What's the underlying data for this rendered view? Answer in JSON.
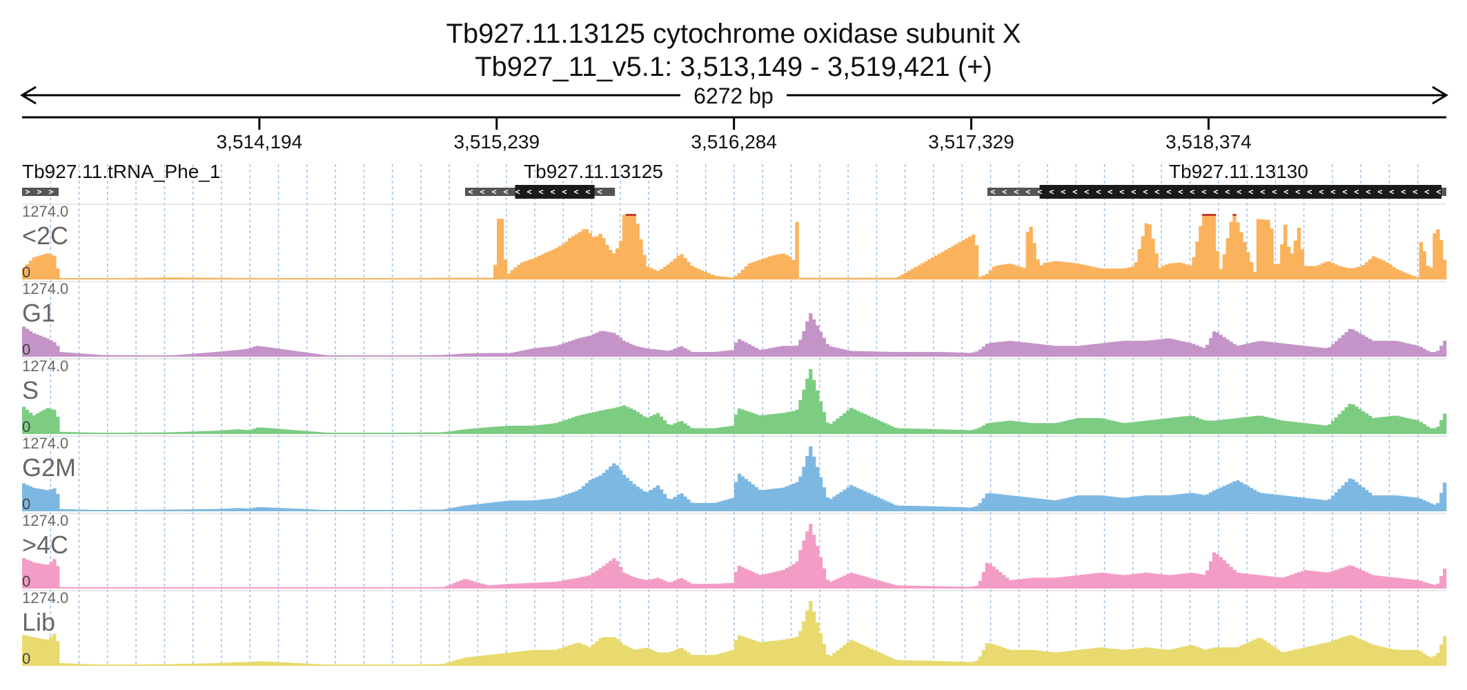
{
  "title": {
    "line1": "Tb927.11.13125  cytochrome oxidase subunit X",
    "line2": "Tb927_11_v5.1: 3,513,149 - 3,519,421 (+)",
    "span": "6272 bp"
  },
  "colors": {
    "axis": "#000000",
    "grid": "#9ec1e4",
    "gene_body": "#1a1a1a",
    "gene_utr": "#555555",
    "clip": "#c0392b"
  },
  "chart_data": {
    "type": "area",
    "xlim": [
      3513149,
      3519421
    ],
    "ticks": [
      {
        "pos": 3514194,
        "label": "3,514,194"
      },
      {
        "pos": 3515239,
        "label": "3,515,239"
      },
      {
        "pos": 3516284,
        "label": "3,516,284"
      },
      {
        "pos": 3517329,
        "label": "3,517,329"
      },
      {
        "pos": 3518374,
        "label": "3,518,374"
      }
    ],
    "genes": [
      {
        "name": "Tb927.11.tRNA_Phe_1",
        "strand": "+",
        "utr": [
          3513149,
          3513310
        ],
        "cds": null
      },
      {
        "name": "Tb927.11.13125",
        "strand": "-",
        "utr": [
          3515100,
          3515760
        ],
        "cds": [
          3515320,
          3515670
        ]
      },
      {
        "name": "Tb927.11.13130",
        "strand": "-",
        "utr": [
          3517400,
          3519421
        ],
        "cds": [
          3517630,
          3519400
        ]
      }
    ],
    "ylim": [
      0,
      1274.0
    ],
    "y_max_label": "1274.0",
    "y_zero_label": "0",
    "tracks": [
      {
        "name": "<2C",
        "color": "#fbb25c",
        "x": [
          3513149,
          3513200,
          3513260,
          3513300,
          3513310,
          3513320,
          3513500,
          3513800,
          3514200,
          3514600,
          3515050,
          3515150,
          3515230,
          3515240,
          3515270,
          3515280,
          3515300,
          3515350,
          3515400,
          3515450,
          3515500,
          3515540,
          3515560,
          3515600,
          3515630,
          3515650,
          3515670,
          3515700,
          3515720,
          3515750,
          3515760,
          3515790,
          3515800,
          3515850,
          3515900,
          3515950,
          3516000,
          3516050,
          3516100,
          3516150,
          3516200,
          3516280,
          3516300,
          3516350,
          3516450,
          3516500,
          3516530,
          3516550,
          3516560,
          3516570,
          3516620,
          3517000,
          3517350,
          3517360,
          3517400,
          3517430,
          3517500,
          3517570,
          3517580,
          3517630,
          3517640,
          3517700,
          3517800,
          3517900,
          3518000,
          3518050,
          3518100,
          3518110,
          3518160,
          3518170,
          3518200,
          3518250,
          3518300,
          3518350,
          3518400,
          3518420,
          3518430,
          3518480,
          3518490,
          3518580,
          3518590,
          3518650,
          3518660,
          3518680,
          3518720,
          3518730,
          3518780,
          3518790,
          3518850,
          3518900,
          3518950,
          3519000,
          3519050,
          3519100,
          3519150,
          3519200,
          3519250,
          3519300,
          3519310,
          3519350,
          3519370,
          3519390,
          3519421
        ],
        "y": [
          180,
          420,
          500,
          440,
          25,
          10,
          10,
          25,
          15,
          10,
          20,
          20,
          20,
          1180,
          1180,
          30,
          150,
          320,
          400,
          500,
          600,
          700,
          800,
          900,
          1000,
          900,
          800,
          900,
          700,
          500,
          500,
          800,
          1274,
          1274,
          250,
          150,
          300,
          500,
          250,
          150,
          60,
          20,
          80,
          300,
          450,
          500,
          440,
          350,
          1274,
          20,
          20,
          20,
          900,
          20,
          100,
          250,
          300,
          200,
          1274,
          200,
          300,
          350,
          300,
          200,
          200,
          250,
          1100,
          1150,
          200,
          250,
          300,
          320,
          250,
          1274,
          1274,
          150,
          200,
          1274,
          1274,
          100,
          1174,
          1150,
          300,
          250,
          1274,
          300,
          1150,
          250,
          250,
          350,
          250,
          200,
          250,
          440,
          350,
          200,
          100,
          20,
          800,
          50,
          950,
          980,
          180
        ]
      },
      {
        "name": "G1",
        "color": "#c494c8",
        "x": [
          3513149,
          3513200,
          3513260,
          3513300,
          3513320,
          3513500,
          3513800,
          3514000,
          3514100,
          3514150,
          3514180,
          3514190,
          3514500,
          3514700,
          3514800,
          3515000,
          3515100,
          3515200,
          3515300,
          3515400,
          3515500,
          3515600,
          3515650,
          3515700,
          3515760,
          3515800,
          3515850,
          3515900,
          3516000,
          3516050,
          3516100,
          3516200,
          3516280,
          3516300,
          3516400,
          3516500,
          3516560,
          3516580,
          3516620,
          3516700,
          3516800,
          3517000,
          3517200,
          3517330,
          3517360,
          3517400,
          3517500,
          3517600,
          3517700,
          3517800,
          3517900,
          3518000,
          3518100,
          3518200,
          3518300,
          3518360,
          3518400,
          3518500,
          3518600,
          3518700,
          3518800,
          3518900,
          3519000,
          3519100,
          3519200,
          3519300,
          3519350,
          3519380,
          3519421
        ],
        "y": [
          600,
          450,
          350,
          250,
          80,
          20,
          10,
          80,
          120,
          150,
          200,
          200,
          10,
          10,
          10,
          20,
          50,
          60,
          60,
          150,
          200,
          350,
          400,
          500,
          450,
          300,
          200,
          150,
          100,
          200,
          80,
          80,
          120,
          350,
          120,
          200,
          200,
          350,
          850,
          200,
          100,
          80,
          80,
          60,
          100,
          250,
          300,
          250,
          200,
          200,
          250,
          300,
          300,
          350,
          250,
          150,
          500,
          200,
          300,
          250,
          200,
          150,
          550,
          300,
          300,
          200,
          80,
          80,
          350
        ]
      },
      {
        "name": "S",
        "color": "#7ccc82",
        "x": [
          3513149,
          3513200,
          3513260,
          3513300,
          3513320,
          3513500,
          3513800,
          3514000,
          3514100,
          3514150,
          3514190,
          3514500,
          3514700,
          3515000,
          3515100,
          3515200,
          3515300,
          3515400,
          3515500,
          3515600,
          3515650,
          3515700,
          3515760,
          3515800,
          3515850,
          3515900,
          3515950,
          3516000,
          3516050,
          3516100,
          3516200,
          3516280,
          3516300,
          3516400,
          3516500,
          3516560,
          3516580,
          3516620,
          3516700,
          3516800,
          3517000,
          3517200,
          3517330,
          3517360,
          3517400,
          3517500,
          3517600,
          3517700,
          3517800,
          3517900,
          3518000,
          3518100,
          3518200,
          3518300,
          3518360,
          3518400,
          3518500,
          3518600,
          3518700,
          3518800,
          3518900,
          3519000,
          3519100,
          3519200,
          3519300,
          3519350,
          3519380,
          3519421
        ],
        "y": [
          550,
          350,
          500,
          450,
          30,
          10,
          20,
          50,
          80,
          60,
          120,
          10,
          10,
          20,
          80,
          120,
          150,
          150,
          200,
          350,
          400,
          450,
          500,
          550,
          450,
          300,
          400,
          150,
          250,
          100,
          100,
          150,
          500,
          350,
          400,
          450,
          700,
          1274,
          150,
          500,
          100,
          80,
          60,
          100,
          200,
          250,
          200,
          200,
          300,
          300,
          200,
          250,
          300,
          350,
          250,
          250,
          300,
          350,
          250,
          200,
          150,
          600,
          300,
          350,
          250,
          100,
          100,
          450
        ]
      },
      {
        "name": "G2M",
        "color": "#7db8e2",
        "x": [
          3513149,
          3513200,
          3513260,
          3513300,
          3513320,
          3513500,
          3513800,
          3514000,
          3514100,
          3514150,
          3514190,
          3514500,
          3514700,
          3515000,
          3515100,
          3515200,
          3515300,
          3515400,
          3515500,
          3515600,
          3515650,
          3515700,
          3515760,
          3515800,
          3515850,
          3515900,
          3515950,
          3516000,
          3516050,
          3516100,
          3516200,
          3516280,
          3516300,
          3516400,
          3516500,
          3516560,
          3516580,
          3516620,
          3516700,
          3516800,
          3517000,
          3517200,
          3517330,
          3517360,
          3517400,
          3517500,
          3517600,
          3517700,
          3517800,
          3517900,
          3518000,
          3518100,
          3518200,
          3518300,
          3518360,
          3518400,
          3518500,
          3518600,
          3518700,
          3518800,
          3518900,
          3519000,
          3519100,
          3519200,
          3519300,
          3519350,
          3519380,
          3519421
        ],
        "y": [
          550,
          450,
          400,
          450,
          30,
          10,
          20,
          30,
          50,
          40,
          70,
          10,
          10,
          20,
          100,
          150,
          200,
          200,
          250,
          400,
          600,
          700,
          950,
          700,
          500,
          350,
          500,
          200,
          350,
          150,
          150,
          250,
          750,
          400,
          450,
          550,
          700,
          1274,
          200,
          500,
          100,
          80,
          60,
          100,
          350,
          300,
          250,
          200,
          300,
          300,
          250,
          300,
          300,
          350,
          300,
          400,
          600,
          350,
          300,
          250,
          200,
          650,
          300,
          300,
          250,
          150,
          100,
          650
        ]
      },
      {
        "name": ">4C",
        "color": "#f39cc6",
        "x": [
          3513149,
          3513200,
          3513260,
          3513300,
          3513320,
          3513500,
          3513800,
          3514000,
          3514100,
          3514150,
          3514190,
          3514500,
          3514700,
          3515000,
          3515100,
          3515200,
          3515300,
          3515400,
          3515500,
          3515600,
          3515650,
          3515700,
          3515760,
          3515800,
          3515850,
          3515900,
          3515950,
          3516000,
          3516050,
          3516100,
          3516200,
          3516280,
          3516300,
          3516400,
          3516500,
          3516560,
          3516580,
          3516620,
          3516700,
          3516800,
          3517000,
          3517200,
          3517330,
          3517360,
          3517400,
          3517500,
          3517600,
          3517700,
          3517800,
          3517900,
          3518000,
          3518100,
          3518200,
          3518300,
          3518360,
          3518400,
          3518500,
          3518600,
          3518700,
          3518800,
          3518900,
          3519000,
          3519100,
          3519200,
          3519300,
          3519350,
          3519380,
          3519421
        ],
        "y": [
          600,
          500,
          450,
          600,
          10,
          5,
          5,
          5,
          5,
          5,
          10,
          5,
          5,
          5,
          180,
          50,
          80,
          100,
          120,
          200,
          250,
          400,
          600,
          300,
          200,
          150,
          200,
          100,
          200,
          80,
          80,
          100,
          450,
          250,
          350,
          500,
          800,
          1274,
          100,
          300,
          50,
          30,
          20,
          50,
          520,
          150,
          200,
          200,
          250,
          300,
          250,
          300,
          250,
          300,
          250,
          720,
          300,
          250,
          200,
          350,
          300,
          450,
          250,
          200,
          150,
          80,
          50,
          450
        ]
      },
      {
        "name": "Lib",
        "color": "#e8da6e",
        "x": [
          3513149,
          3513200,
          3513260,
          3513300,
          3513320,
          3513500,
          3513800,
          3514000,
          3514100,
          3514150,
          3514190,
          3514500,
          3514700,
          3515000,
          3515100,
          3515200,
          3515300,
          3515400,
          3515500,
          3515600,
          3515650,
          3515700,
          3515760,
          3515800,
          3515850,
          3515900,
          3515950,
          3516000,
          3516050,
          3516100,
          3516200,
          3516280,
          3516300,
          3516400,
          3516500,
          3516560,
          3516580,
          3516620,
          3516700,
          3516800,
          3517000,
          3517200,
          3517330,
          3517360,
          3517400,
          3517500,
          3517600,
          3517700,
          3517800,
          3517900,
          3518000,
          3518100,
          3518200,
          3518300,
          3518360,
          3518400,
          3518500,
          3518600,
          3518700,
          3518800,
          3518900,
          3519000,
          3519100,
          3519200,
          3519300,
          3519350,
          3519380,
          3519421
        ],
        "y": [
          600,
          550,
          500,
          650,
          40,
          10,
          20,
          40,
          60,
          60,
          80,
          10,
          10,
          20,
          150,
          200,
          250,
          300,
          300,
          450,
          350,
          550,
          550,
          400,
          300,
          350,
          250,
          250,
          350,
          200,
          200,
          300,
          600,
          450,
          500,
          550,
          700,
          1274,
          150,
          500,
          100,
          80,
          60,
          100,
          450,
          300,
          300,
          250,
          300,
          350,
          300,
          350,
          300,
          400,
          300,
          350,
          350,
          550,
          250,
          350,
          450,
          600,
          400,
          300,
          300,
          150,
          200,
          650
        ]
      }
    ]
  }
}
